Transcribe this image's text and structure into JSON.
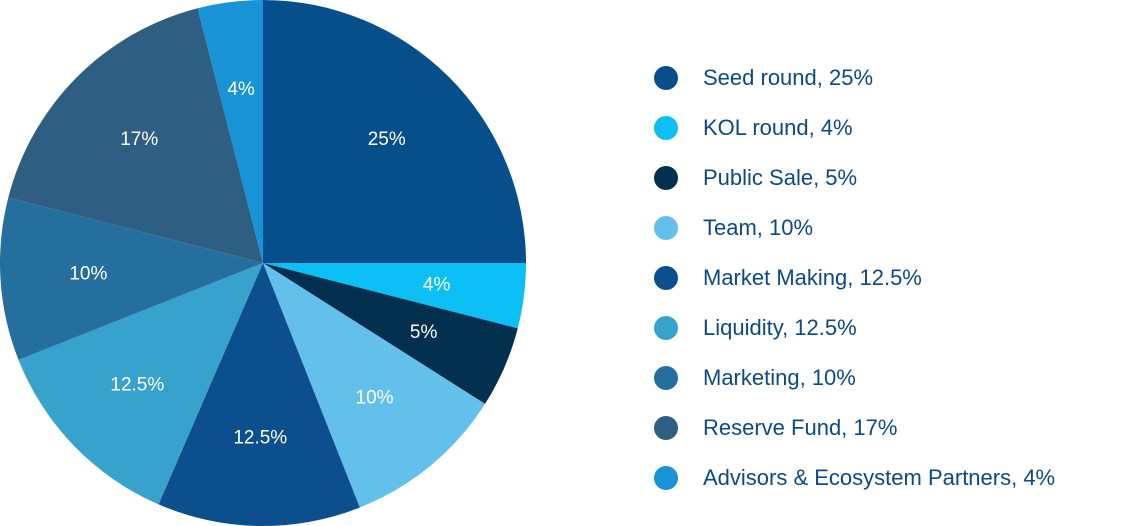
{
  "chart_data": {
    "type": "pie",
    "title": "",
    "start_angle_deg": 0,
    "direction": "clockwise",
    "legend_position": "right",
    "slices": [
      {
        "name": "Seed round, 25%",
        "value": 25,
        "label": "25%",
        "color": "#064f8b"
      },
      {
        "name": "KOL round, 4%",
        "value": 4,
        "label": "4%",
        "color": "#0cc0f6"
      },
      {
        "name": "Public Sale, 5%",
        "value": 5,
        "label": "5%",
        "color": "#03304f"
      },
      {
        "name": "Team, 10%",
        "value": 10,
        "label": "10%",
        "color": "#63c0eb"
      },
      {
        "name": "Market Making, 12.5%",
        "value": 12.5,
        "label": "12.5%",
        "color": "#0c4f8d"
      },
      {
        "name": "Liquidity, 12.5%",
        "value": 12.5,
        "label": "12.5%",
        "color": "#37a2cb"
      },
      {
        "name": "Marketing, 10%",
        "value": 10,
        "label": "10%",
        "color": "#256f9f"
      },
      {
        "name": "Reserve Fund, 17%",
        "value": 17,
        "label": "17%",
        "color": "#2e5f82"
      },
      {
        "name": "Advisors & Ecosystem Partners, 4%",
        "value": 4,
        "label": "4%",
        "color": "#1793d6"
      }
    ]
  }
}
